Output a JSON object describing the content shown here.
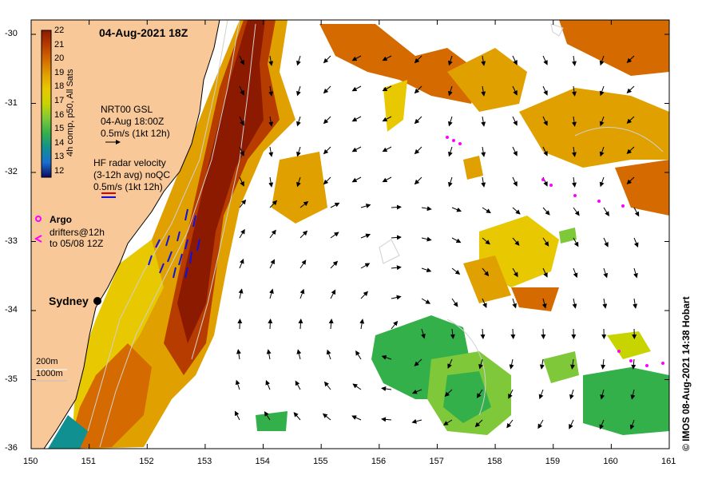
{
  "title": "04-Aug-2021 18Z",
  "colorbar": {
    "ticks": [
      "22",
      "21",
      "20",
      "19",
      "18",
      "17",
      "16",
      "15",
      "14",
      "13",
      "12"
    ],
    "label": "4h comp, p50, All Sats",
    "colors": [
      "#8b1a00",
      "#b73c00",
      "#d46a00",
      "#e0a000",
      "#e8c800",
      "#c8d400",
      "#7ec83a",
      "#34b04a",
      "#109090",
      "#1a6fd0",
      "#1a2aa0",
      "#0a0a60"
    ]
  },
  "legend": {
    "nrt_line1": "NRT00 GSL",
    "nrt_line2": "04-Aug 18:00Z",
    "nrt_line3": "0.5m/s (1kt 12h)",
    "hf_line1": "HF radar velocity",
    "hf_line2": "(3-12h avg) noQC",
    "hf_line3": "0.5m/s (1kt 12h)",
    "argo": "Argo",
    "drifters_line1": "drifters@12h",
    "drifters_line2": "to 05/08 12Z"
  },
  "city": "Sydney",
  "depth_contours": [
    "200m",
    "1000m"
  ],
  "x_ticks": [
    "150",
    "151",
    "152",
    "153",
    "154",
    "155",
    "156",
    "157",
    "158",
    "159",
    "160",
    "161"
  ],
  "y_ticks": [
    "-30",
    "-31",
    "-32",
    "-33",
    "-34",
    "-35",
    "-36"
  ],
  "credit": "© IMOS 08-Aug-2021 14:38 Hobart",
  "colors": {
    "land": "#f8c898",
    "sea_white": "#ffffff",
    "argo": "#ff00ff",
    "hf_radar": "#1010e0",
    "arrow": "#000000"
  }
}
